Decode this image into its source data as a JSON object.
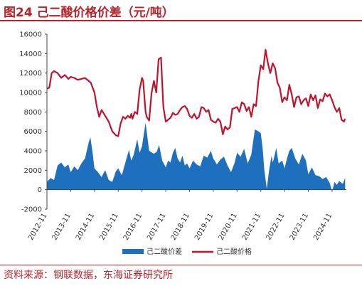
{
  "title": "图24  己二酸价格价差（元/吨）",
  "source": "资料来源：钢联数据，东海证券研究所",
  "chart_data": {
    "type": "area+line",
    "title": "",
    "xlabel": "",
    "ylabel": "",
    "ylim": [
      -2000,
      16000
    ],
    "yticks": [
      "16000",
      "14000",
      "12000",
      "10000",
      "8000",
      "6000",
      "4000",
      "2000",
      "0",
      "-2000"
    ],
    "xticks": [
      "2012-11",
      "2013-11",
      "2014-11",
      "2015-11",
      "2016-11",
      "2017-11",
      "2018-11",
      "2019-11",
      "2020-11",
      "2021-11",
      "2022-11",
      "2023-11",
      "2024-11"
    ],
    "grid": false,
    "legend_position": "bottom",
    "series": [
      {
        "name": "己二酸价差",
        "type": "area",
        "color": "#1f6fbf",
        "t": [
          0,
          0.15,
          0.3,
          0.45,
          0.6,
          0.75,
          0.9,
          1.0,
          1.15,
          1.3,
          1.45,
          1.6,
          1.75,
          1.83,
          1.92,
          2.0,
          2.15,
          2.3,
          2.45,
          2.6,
          2.75,
          2.9,
          3.0,
          3.15,
          3.3,
          3.45,
          3.55,
          3.65,
          3.8,
          3.9,
          4.0,
          4.15,
          4.3,
          4.5,
          4.62,
          4.72,
          4.85,
          5.0,
          5.1,
          5.2,
          5.3,
          5.4,
          5.5,
          5.6,
          5.7,
          5.8,
          5.9,
          6.0,
          6.15,
          6.3,
          6.45,
          6.6,
          6.75,
          6.9,
          7.0,
          7.15,
          7.3,
          7.45,
          7.6,
          7.75,
          7.9,
          8.0,
          8.15,
          8.3,
          8.45,
          8.6,
          8.75,
          8.9,
          9.0,
          9.08,
          9.15,
          9.25,
          9.35,
          9.45,
          9.5,
          9.55,
          9.65,
          9.75,
          9.9,
          10.0,
          10.1,
          10.2,
          10.3,
          10.45,
          10.6,
          10.75,
          10.9,
          11.0,
          11.15,
          11.3,
          11.45,
          11.6,
          11.75,
          11.9,
          12.0,
          12.1,
          12.2,
          12.3,
          12.45,
          12.55
        ],
        "values": [
          800,
          1200,
          1000,
          2500,
          2800,
          2300,
          2600,
          1800,
          2400,
          2000,
          2700,
          3200,
          4800,
          5400,
          3800,
          2200,
          1800,
          1300,
          2000,
          1000,
          800,
          1900,
          2200,
          1500,
          2800,
          4100,
          3000,
          3600,
          5200,
          3800,
          4500,
          6900,
          4000,
          3700,
          3900,
          4600,
          3000,
          2300,
          3000,
          2800,
          3800,
          4300,
          3200,
          2800,
          3500,
          2500,
          2700,
          2200,
          3000,
          2600,
          2400,
          3500,
          3300,
          4000,
          3200,
          2600,
          3100,
          3400,
          2500,
          1800,
          2800,
          3800,
          3400,
          4200,
          2700,
          3600,
          6200,
          6000,
          5800,
          4200,
          2000,
          100,
          2000,
          3500,
          2800,
          3200,
          4300,
          2700,
          3000,
          2200,
          3200,
          4000,
          4300,
          3200,
          2600,
          3700,
          3000,
          1600,
          2300,
          1500,
          1400,
          1100,
          1300,
          700,
          -200,
          800,
          500,
          900,
          600,
          1200
        ]
      },
      {
        "name": "己二酸价格",
        "type": "line",
        "color": "#c0142c",
        "t": [
          0,
          0.1,
          0.2,
          0.3,
          0.45,
          0.6,
          0.75,
          0.9,
          1.0,
          1.15,
          1.3,
          1.45,
          1.6,
          1.75,
          1.85,
          1.92,
          2.0,
          2.1,
          2.2,
          2.3,
          2.45,
          2.6,
          2.75,
          2.9,
          3.0,
          3.1,
          3.2,
          3.3,
          3.4,
          3.5,
          3.55,
          3.6,
          3.7,
          3.8,
          3.9,
          4.0,
          4.05,
          4.15,
          4.2,
          4.3,
          4.4,
          4.5,
          4.6,
          4.7,
          4.8,
          4.9,
          5.0,
          5.1,
          5.2,
          5.3,
          5.4,
          5.5,
          5.6,
          5.7,
          5.8,
          5.9,
          6.0,
          6.1,
          6.2,
          6.3,
          6.4,
          6.5,
          6.6,
          6.7,
          6.8,
          6.9,
          7.0,
          7.1,
          7.2,
          7.3,
          7.4,
          7.5,
          7.6,
          7.7,
          7.8,
          7.9,
          8.0,
          8.1,
          8.2,
          8.3,
          8.4,
          8.5,
          8.6,
          8.7,
          8.8,
          8.9,
          9.0,
          9.1,
          9.2,
          9.3,
          9.4,
          9.5,
          9.6,
          9.7,
          9.8,
          9.9,
          10.0,
          10.1,
          10.2,
          10.3,
          10.4,
          10.5,
          10.6,
          10.7,
          10.8,
          10.9,
          11.0,
          11.1,
          11.2,
          11.3,
          11.4,
          11.5,
          11.6,
          11.7,
          11.8,
          11.9,
          12.0,
          12.1,
          12.2,
          12.3,
          12.4,
          12.5,
          12.55
        ],
        "values": [
          10400,
          10500,
          12000,
          12200,
          12000,
          11500,
          11800,
          11400,
          11600,
          11500,
          11300,
          11400,
          11500,
          11200,
          11000,
          10500,
          10000,
          8500,
          7500,
          8200,
          7600,
          7000,
          6000,
          5600,
          5500,
          6800,
          7500,
          7300,
          7600,
          7400,
          7800,
          7300,
          8000,
          7800,
          10300,
          11500,
          11200,
          8000,
          7500,
          7100,
          9900,
          11200,
          10000,
          13400,
          13600,
          8500,
          7000,
          7200,
          7400,
          7900,
          7700,
          7800,
          8200,
          8500,
          8600,
          8300,
          7600,
          7400,
          7800,
          7300,
          7500,
          8500,
          8400,
          8000,
          8200,
          7200,
          7000,
          6900,
          7300,
          7000,
          5700,
          6500,
          6200,
          6400,
          8300,
          8400,
          8500,
          8000,
          9000,
          8800,
          8100,
          8500,
          7500,
          8800,
          8600,
          11200,
          12800,
          12400,
          14400,
          13000,
          12000,
          13000,
          12500,
          11000,
          10500,
          9000,
          9500,
          9200,
          10800,
          9800,
          8500,
          9500,
          9600,
          8800,
          9200,
          9400,
          8600,
          9800,
          9200,
          9700,
          8400,
          9300,
          9100,
          9900,
          9600,
          9800,
          9200,
          8500,
          8000,
          8400,
          7200,
          7000,
          7300
        ]
      }
    ]
  }
}
